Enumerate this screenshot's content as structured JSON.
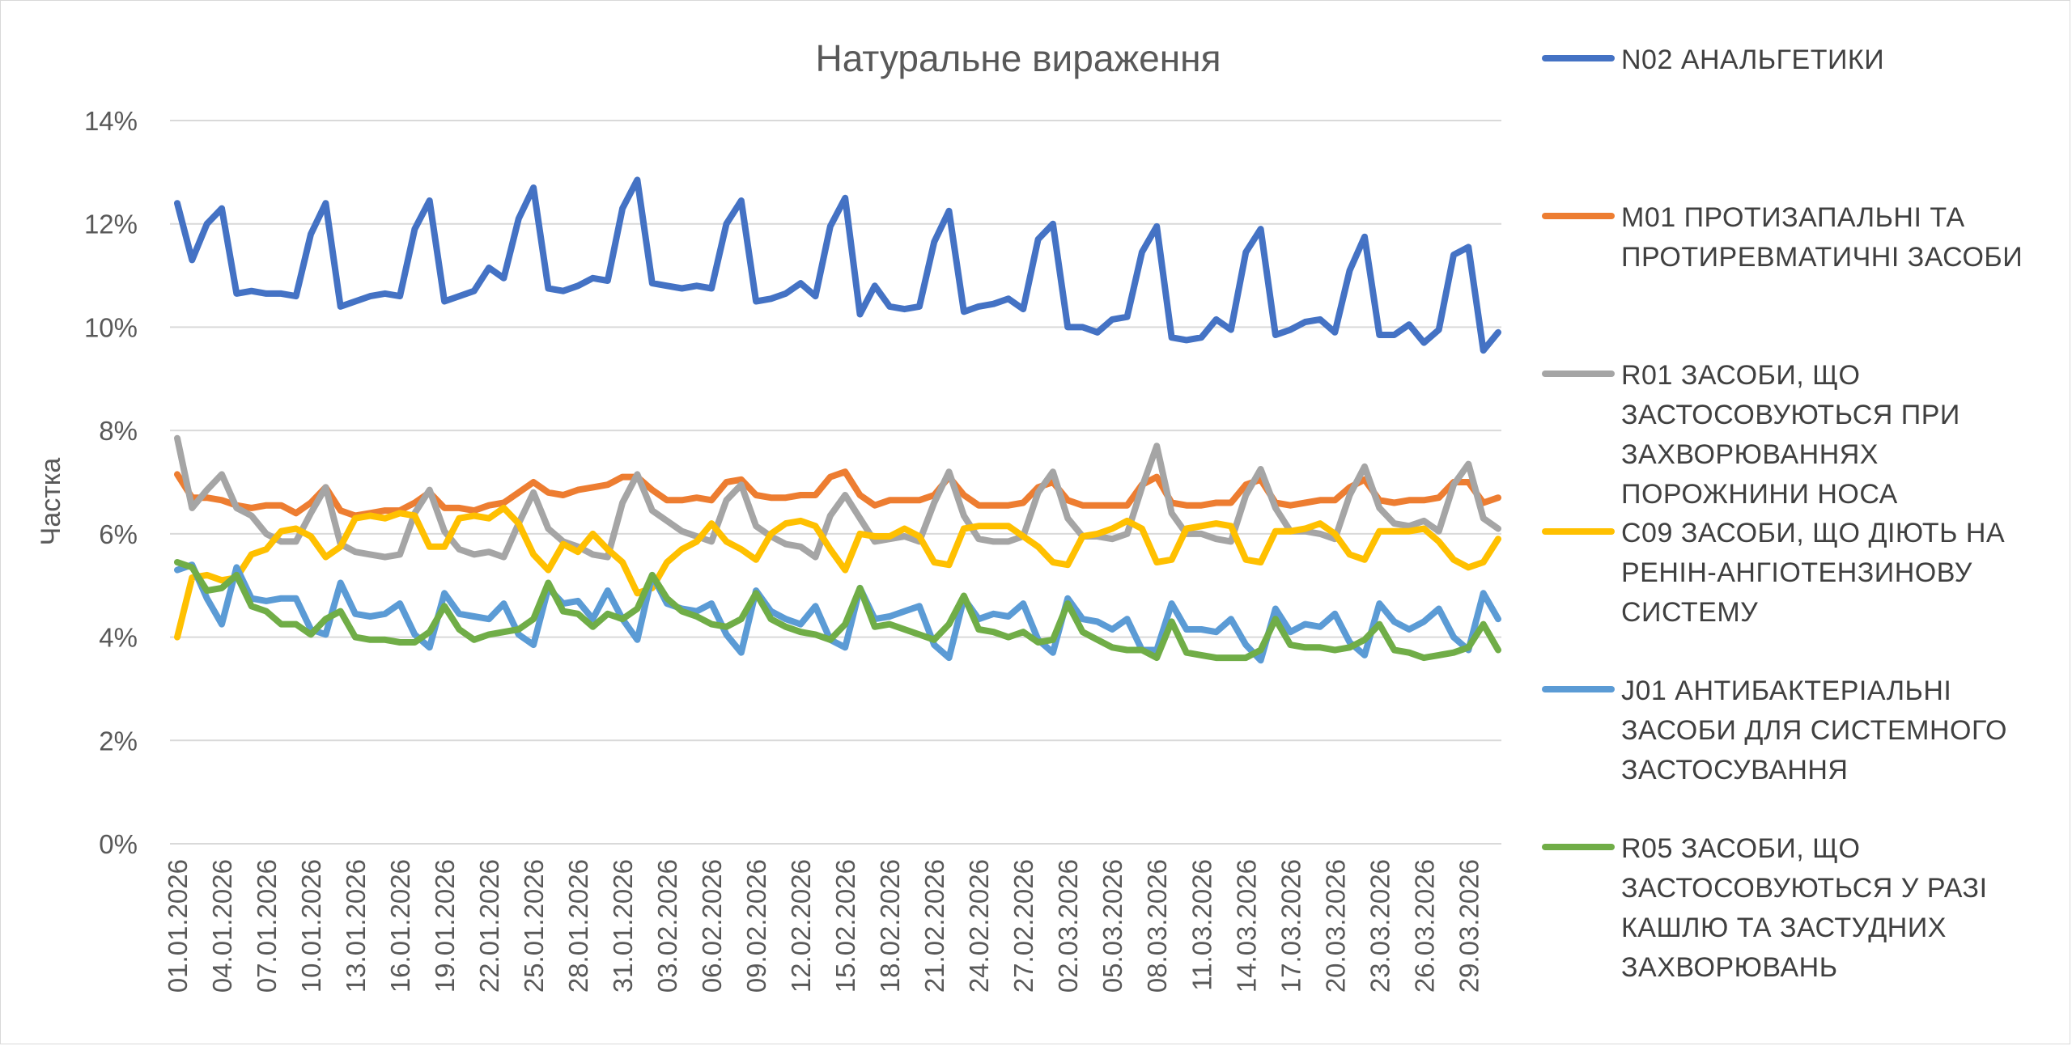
{
  "chart_data": {
    "type": "line",
    "title": "Натуральне вираження",
    "ylabel": "Частка",
    "xlabel": "",
    "ylim": [
      0,
      14
    ],
    "yticks": [
      "0%",
      "2%",
      "4%",
      "6%",
      "8%",
      "10%",
      "12%",
      "14%"
    ],
    "grid": "horizontal",
    "legend_position": "right",
    "x_tick_labels": [
      "01.01.2026",
      "04.01.2026",
      "07.01.2026",
      "10.01.2026",
      "13.01.2026",
      "16.01.2026",
      "19.01.2026",
      "22.01.2026",
      "25.01.2026",
      "28.01.2026",
      "31.01.2026",
      "03.02.2026",
      "06.02.2026",
      "09.02.2026",
      "12.02.2026",
      "15.02.2026",
      "18.02.2026",
      "21.02.2026",
      "24.02.2026",
      "27.02.2026",
      "02.03.2026",
      "05.03.2026",
      "08.03.2026",
      "11.03.2026",
      "14.03.2026",
      "17.03.2026",
      "20.03.2026",
      "23.03.2026",
      "26.03.2026",
      "29.03.2026"
    ],
    "x": [
      "01.01.2026",
      "02.01.2026",
      "03.01.2026",
      "04.01.2026",
      "05.01.2026",
      "06.01.2026",
      "07.01.2026",
      "08.01.2026",
      "09.01.2026",
      "10.01.2026",
      "11.01.2026",
      "12.01.2026",
      "13.01.2026",
      "14.01.2026",
      "15.01.2026",
      "16.01.2026",
      "17.01.2026",
      "18.01.2026",
      "19.01.2026",
      "20.01.2026",
      "21.01.2026",
      "22.01.2026",
      "23.01.2026",
      "24.01.2026",
      "25.01.2026",
      "26.01.2026",
      "27.01.2026",
      "28.01.2026",
      "29.01.2026",
      "30.01.2026",
      "31.01.2026",
      "01.02.2026",
      "02.02.2026",
      "03.02.2026",
      "04.02.2026",
      "05.02.2026",
      "06.02.2026",
      "07.02.2026",
      "08.02.2026",
      "09.02.2026",
      "10.02.2026",
      "11.02.2026",
      "12.02.2026",
      "13.02.2026",
      "14.02.2026",
      "15.02.2026",
      "16.02.2026",
      "17.02.2026",
      "18.02.2026",
      "19.02.2026",
      "20.02.2026",
      "21.02.2026",
      "22.02.2026",
      "23.02.2026",
      "24.02.2026",
      "25.02.2026",
      "26.02.2026",
      "27.02.2026",
      "28.02.2026",
      "01.03.2026",
      "02.03.2026",
      "03.03.2026",
      "04.03.2026",
      "05.03.2026",
      "06.03.2026",
      "07.03.2026",
      "08.03.2026",
      "09.03.2026",
      "10.03.2026",
      "11.03.2026",
      "12.03.2026",
      "13.03.2026",
      "14.03.2026",
      "15.03.2026",
      "16.03.2026",
      "17.03.2026",
      "18.03.2026",
      "19.03.2026",
      "20.03.2026",
      "21.03.2026",
      "22.03.2026",
      "23.03.2026",
      "24.03.2026",
      "25.03.2026",
      "26.03.2026",
      "27.03.2026",
      "28.03.2026",
      "29.03.2026",
      "30.03.2026",
      "31.03.2026"
    ],
    "series": [
      {
        "name": "N02 АНАЛЬГЕТИКИ",
        "color": "#4472C4",
        "values": [
          12.4,
          11.3,
          12.0,
          12.3,
          10.65,
          10.7,
          10.65,
          10.65,
          10.6,
          11.8,
          12.4,
          10.4,
          10.5,
          10.6,
          10.65,
          10.6,
          11.9,
          12.45,
          10.5,
          10.6,
          10.7,
          11.15,
          10.95,
          12.1,
          12.7,
          10.75,
          10.7,
          10.8,
          10.95,
          10.9,
          12.3,
          12.85,
          10.85,
          10.8,
          10.75,
          10.8,
          10.75,
          12.0,
          12.45,
          10.5,
          10.55,
          10.65,
          10.85,
          10.6,
          11.95,
          12.5,
          10.25,
          10.8,
          10.4,
          10.35,
          10.4,
          11.65,
          12.25,
          10.3,
          10.4,
          10.45,
          10.55,
          10.35,
          11.7,
          12.0,
          10.0,
          10.0,
          9.9,
          10.15,
          10.2,
          11.45,
          11.95,
          9.8,
          9.75,
          9.8,
          10.15,
          9.95,
          11.45,
          11.9,
          9.85,
          9.95,
          10.1,
          10.15,
          9.9,
          11.1,
          11.75,
          9.85,
          9.85,
          10.05,
          9.7,
          9.95,
          11.4,
          11.55,
          9.55,
          9.9
        ]
      },
      {
        "name": "M01 ПРОТИЗАПАЛЬНІ ТА ПРОТИРЕВМАТИЧНІ ЗАСОБИ",
        "color": "#ED7D31",
        "values": [
          7.15,
          6.7,
          6.7,
          6.65,
          6.55,
          6.5,
          6.55,
          6.55,
          6.4,
          6.6,
          6.9,
          6.45,
          6.35,
          6.4,
          6.45,
          6.45,
          6.6,
          6.8,
          6.5,
          6.5,
          6.45,
          6.55,
          6.6,
          6.8,
          7.0,
          6.8,
          6.75,
          6.85,
          6.9,
          6.95,
          7.1,
          7.1,
          6.85,
          6.65,
          6.65,
          6.7,
          6.65,
          7.0,
          7.05,
          6.75,
          6.7,
          6.7,
          6.75,
          6.75,
          7.1,
          7.2,
          6.75,
          6.55,
          6.65,
          6.65,
          6.65,
          6.75,
          7.1,
          6.75,
          6.55,
          6.55,
          6.55,
          6.6,
          6.9,
          7.0,
          6.65,
          6.55,
          6.55,
          6.55,
          6.55,
          6.95,
          7.1,
          6.6,
          6.55,
          6.55,
          6.6,
          6.6,
          6.95,
          7.05,
          6.6,
          6.55,
          6.6,
          6.65,
          6.65,
          6.9,
          7.05,
          6.65,
          6.6,
          6.65,
          6.65,
          6.7,
          7.0,
          7.0,
          6.6,
          6.7
        ]
      },
      {
        "name": "R01 ЗАСОБИ, ЩО ЗАСТОСОВУЮТЬСЯ ПРИ ЗАХВОРЮВАННЯХ ПОРОЖНИНИ НОСА",
        "color": "#A5A5A5",
        "values": [
          7.85,
          6.5,
          6.85,
          7.15,
          6.5,
          6.35,
          6.0,
          5.85,
          5.85,
          6.4,
          6.9,
          5.8,
          5.65,
          5.6,
          5.55,
          5.6,
          6.4,
          6.85,
          6.05,
          5.7,
          5.6,
          5.65,
          5.55,
          6.2,
          6.8,
          6.1,
          5.85,
          5.75,
          5.6,
          5.55,
          6.6,
          7.15,
          6.45,
          6.25,
          6.05,
          5.95,
          5.85,
          6.65,
          6.95,
          6.15,
          5.95,
          5.8,
          5.75,
          5.55,
          6.35,
          6.75,
          6.3,
          5.85,
          5.9,
          5.95,
          5.85,
          6.6,
          7.2,
          6.35,
          5.9,
          5.85,
          5.85,
          5.95,
          6.8,
          7.2,
          6.3,
          5.95,
          5.95,
          5.9,
          6.0,
          6.9,
          7.7,
          6.4,
          6.0,
          6.0,
          5.9,
          5.85,
          6.75,
          7.25,
          6.5,
          6.05,
          6.05,
          6.0,
          5.9,
          6.75,
          7.3,
          6.5,
          6.2,
          6.15,
          6.25,
          6.05,
          6.95,
          7.35,
          6.3,
          6.1
        ]
      },
      {
        "name": "C09 ЗАСОБИ, ЩО ДІЮТЬ НА РЕНІН-АНГІОТЕНЗИНОВУ СИСТЕМУ",
        "color": "#FFC000",
        "values": [
          4.0,
          5.15,
          5.2,
          5.1,
          5.15,
          5.6,
          5.7,
          6.05,
          6.1,
          5.95,
          5.55,
          5.75,
          6.3,
          6.35,
          6.3,
          6.4,
          6.35,
          5.75,
          5.75,
          6.3,
          6.35,
          6.3,
          6.5,
          6.2,
          5.6,
          5.3,
          5.8,
          5.65,
          6.0,
          5.7,
          5.45,
          4.85,
          4.95,
          5.45,
          5.7,
          5.85,
          6.2,
          5.85,
          5.7,
          5.5,
          6.0,
          6.2,
          6.25,
          6.15,
          5.7,
          5.3,
          6.0,
          5.95,
          5.95,
          6.1,
          5.95,
          5.45,
          5.4,
          6.1,
          6.15,
          6.15,
          6.15,
          5.95,
          5.75,
          5.45,
          5.4,
          5.95,
          6.0,
          6.1,
          6.25,
          6.1,
          5.45,
          5.5,
          6.1,
          6.15,
          6.2,
          6.15,
          5.5,
          5.45,
          6.05,
          6.05,
          6.1,
          6.2,
          6.0,
          5.6,
          5.5,
          6.05,
          6.05,
          6.05,
          6.1,
          5.85,
          5.5,
          5.35,
          5.45,
          5.9
        ]
      },
      {
        "name": "J01 АНТИБАКТЕРІАЛЬНІ ЗАСОБИ ДЛЯ СИСТЕМНОГО ЗАСТОСУВАННЯ",
        "color": "#5B9BD5",
        "values": [
          5.3,
          5.4,
          4.75,
          4.25,
          5.35,
          4.75,
          4.7,
          4.75,
          4.75,
          4.15,
          4.05,
          5.05,
          4.45,
          4.4,
          4.45,
          4.65,
          4.05,
          3.8,
          4.85,
          4.45,
          4.4,
          4.35,
          4.65,
          4.05,
          3.85,
          4.95,
          4.65,
          4.7,
          4.35,
          4.9,
          4.35,
          3.95,
          5.2,
          4.65,
          4.55,
          4.5,
          4.65,
          4.05,
          3.7,
          4.9,
          4.5,
          4.35,
          4.25,
          4.6,
          3.95,
          3.8,
          4.95,
          4.35,
          4.4,
          4.5,
          4.6,
          3.85,
          3.6,
          4.75,
          4.35,
          4.45,
          4.4,
          4.65,
          3.95,
          3.7,
          4.75,
          4.35,
          4.3,
          4.15,
          4.35,
          3.75,
          3.75,
          4.65,
          4.15,
          4.15,
          4.1,
          4.35,
          3.85,
          3.55,
          4.55,
          4.1,
          4.25,
          4.2,
          4.45,
          3.9,
          3.65,
          4.65,
          4.3,
          4.15,
          4.3,
          4.55,
          4.0,
          3.75,
          4.85,
          4.35
        ]
      },
      {
        "name": "R05 ЗАСОБИ, ЩО ЗАСТОСОВУЮТЬСЯ У РАЗІ КАШЛЮ ТА ЗАСТУДНИХ ЗАХВОРЮВАНЬ",
        "color": "#70AD47",
        "values": [
          5.45,
          5.35,
          4.9,
          4.95,
          5.2,
          4.6,
          4.5,
          4.25,
          4.25,
          4.05,
          4.35,
          4.5,
          4.0,
          3.95,
          3.95,
          3.9,
          3.9,
          4.1,
          4.6,
          4.15,
          3.95,
          4.05,
          4.1,
          4.15,
          4.35,
          5.05,
          4.5,
          4.45,
          4.2,
          4.45,
          4.35,
          4.55,
          5.2,
          4.75,
          4.5,
          4.4,
          4.25,
          4.2,
          4.35,
          4.85,
          4.35,
          4.2,
          4.1,
          4.05,
          3.95,
          4.25,
          4.95,
          4.2,
          4.25,
          4.15,
          4.05,
          3.95,
          4.25,
          4.8,
          4.15,
          4.1,
          4.0,
          4.1,
          3.9,
          3.95,
          4.65,
          4.1,
          3.95,
          3.8,
          3.75,
          3.75,
          3.6,
          4.3,
          3.7,
          3.65,
          3.6,
          3.6,
          3.6,
          3.75,
          4.35,
          3.85,
          3.8,
          3.8,
          3.75,
          3.8,
          3.95,
          4.25,
          3.75,
          3.7,
          3.6,
          3.65,
          3.7,
          3.8,
          4.25,
          3.75
        ]
      }
    ]
  }
}
